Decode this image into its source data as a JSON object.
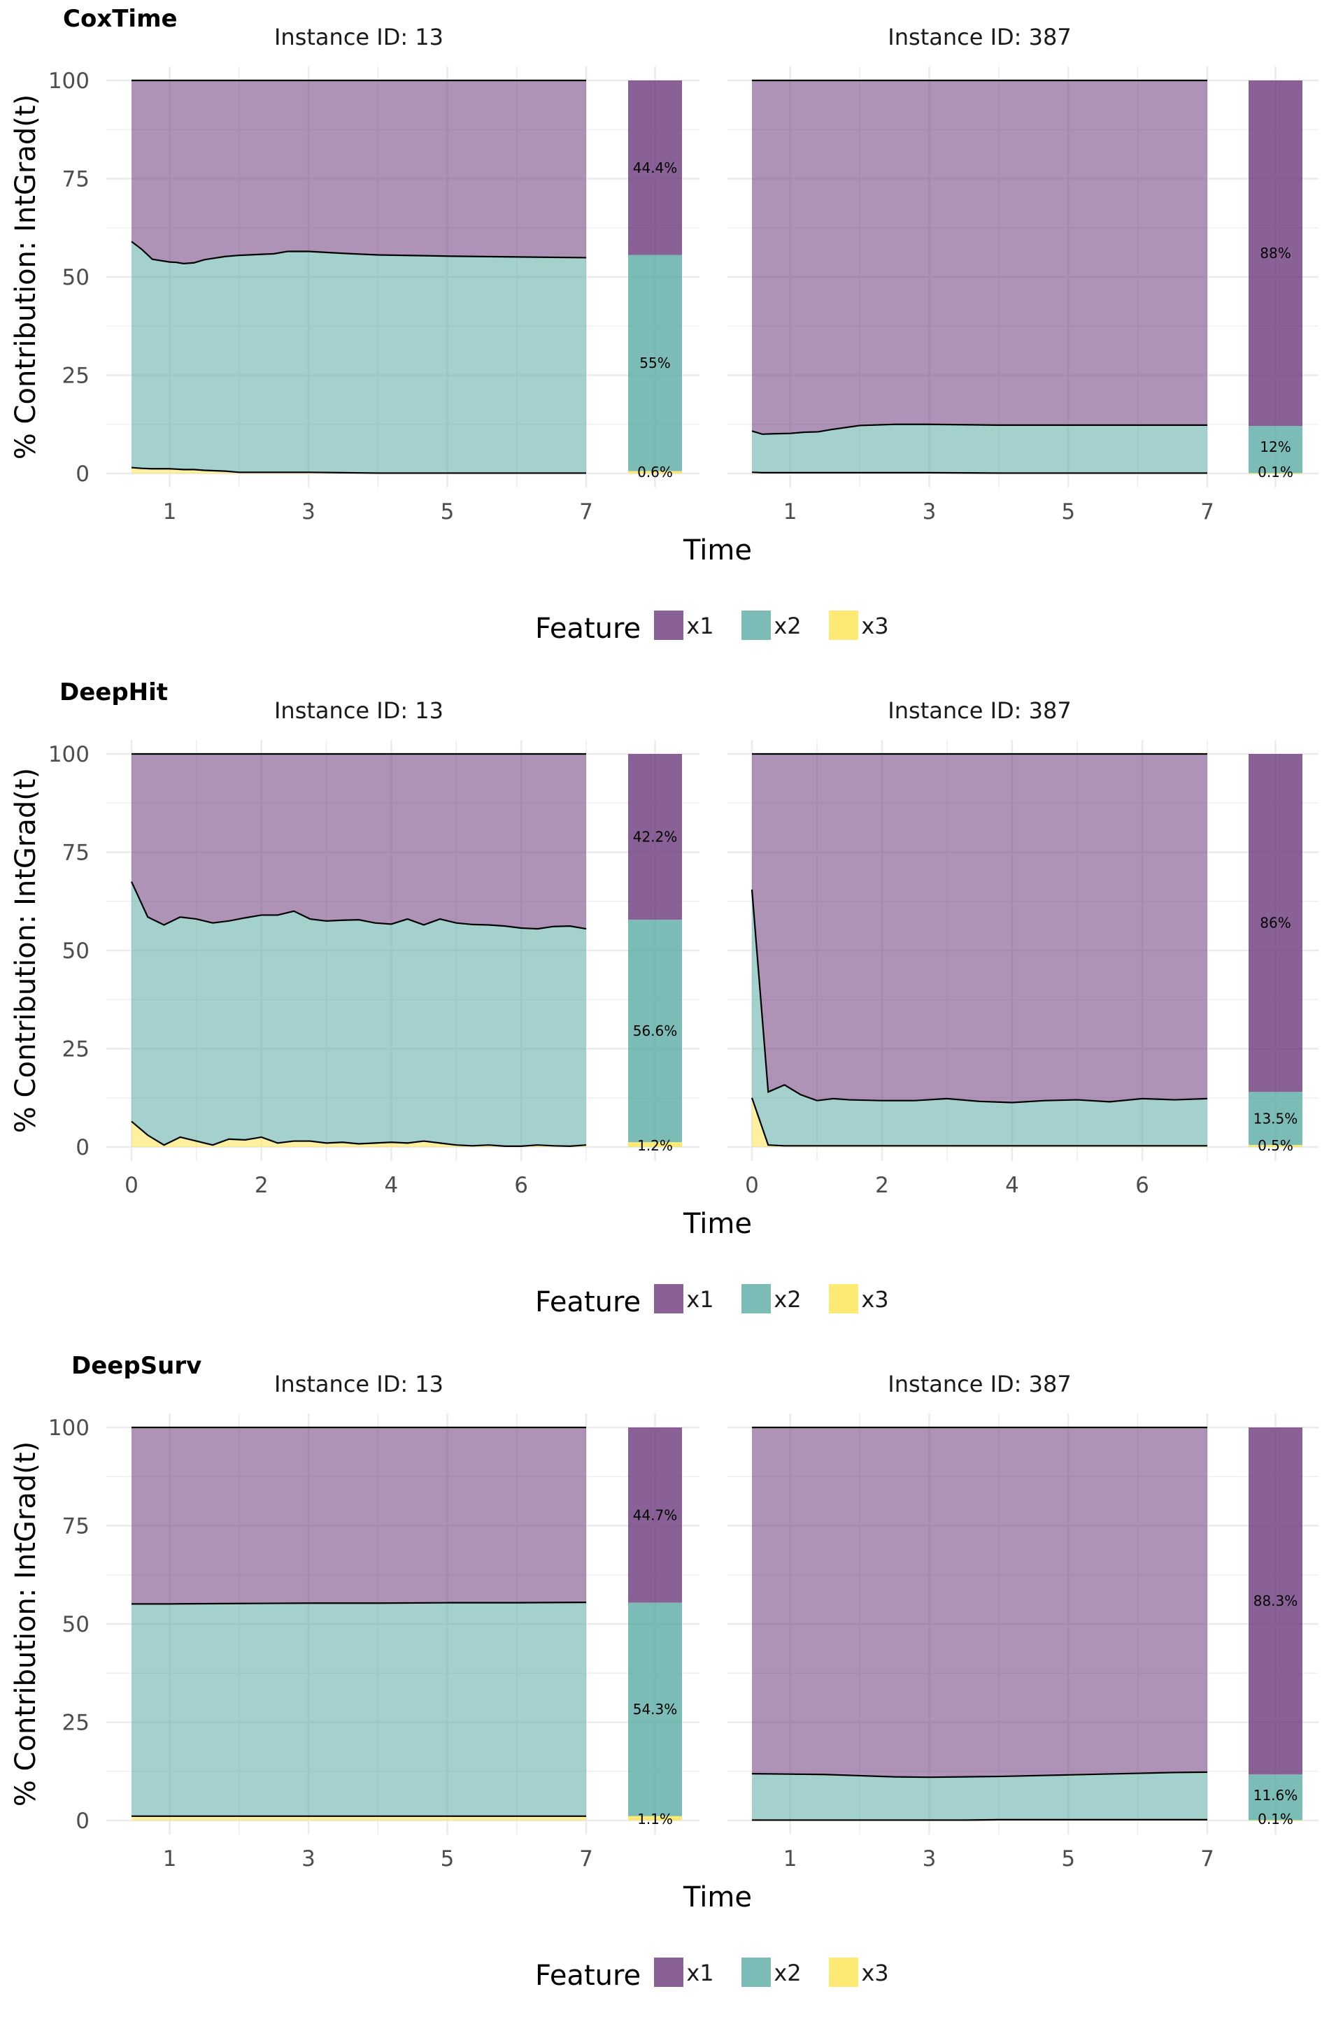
{
  "colors": {
    "x1": "#6c3a7c",
    "x2": "#5aaba4",
    "x3": "#fbe551",
    "grid": "#ebebeb",
    "line": "#000000"
  },
  "common": {
    "y_label": "% Contribution: IntGrad(t)",
    "x_label": "Time",
    "legend_title": "Feature",
    "y_ticks": [
      "100",
      "75",
      "50",
      "25",
      "0"
    ]
  },
  "chart_data": [
    {
      "type": "area",
      "title": "CoxTime",
      "xlabel": "Time",
      "ylabel": "% Contribution: IntGrad(t)",
      "ylim": [
        0,
        100
      ],
      "xlim": [
        0.45,
        7
      ],
      "x_ticks": [
        1,
        3,
        5,
        7
      ],
      "legend": [
        "x1",
        "x2",
        "x3"
      ],
      "legend_placement": "bottom",
      "panels": [
        {
          "title": "Instance ID: 13",
          "x": [
            0.45,
            0.6,
            0.75,
            1.0,
            1.1,
            1.2,
            1.35,
            1.5,
            1.8,
            2.0,
            2.5,
            2.7,
            3.0,
            3.5,
            4.0,
            5.0,
            6.0,
            7.0
          ],
          "series": [
            {
              "name": "x3",
              "values": [
                1.5,
                1.3,
                1.2,
                1.2,
                1.1,
                1.0,
                1.0,
                0.8,
                0.6,
                0.3,
                0.3,
                0.3,
                0.3,
                0.2,
                0.1,
                0.1,
                0.1,
                0.1
              ]
            },
            {
              "name": "x2",
              "values": [
                57.5,
                55.7,
                53.3,
                52.6,
                52.6,
                52.4,
                52.6,
                53.6,
                54.6,
                55.2,
                55.6,
                56.2,
                56.2,
                55.8,
                55.5,
                55.2,
                55.0,
                54.8
              ]
            }
          ],
          "summary": [
            {
              "name": "x1",
              "value": 44.4,
              "label": "44.4%"
            },
            {
              "name": "x2",
              "value": 55.0,
              "label": "55%"
            },
            {
              "name": "x3",
              "value": 0.6,
              "label": "0.6%"
            }
          ]
        },
        {
          "title": "Instance ID: 387",
          "x": [
            0.45,
            0.6,
            0.75,
            1.0,
            1.2,
            1.4,
            1.6,
            1.8,
            2.0,
            2.5,
            3.0,
            4.0,
            5.0,
            6.0,
            7.0
          ],
          "series": [
            {
              "name": "x3",
              "values": [
                0.3,
                0.2,
                0.2,
                0.2,
                0.2,
                0.2,
                0.2,
                0.2,
                0.2,
                0.2,
                0.2,
                0.1,
                0.1,
                0.1,
                0.1
              ]
            },
            {
              "name": "x2",
              "values": [
                10.5,
                9.8,
                9.9,
                10.0,
                10.3,
                10.4,
                11.0,
                11.5,
                12.0,
                12.3,
                12.3,
                12.2,
                12.2,
                12.2,
                12.2
              ]
            }
          ],
          "summary": [
            {
              "name": "x1",
              "value": 88,
              "label": "88%"
            },
            {
              "name": "x2",
              "value": 12,
              "label": "12%"
            },
            {
              "name": "x3",
              "value": 0.1,
              "label": "0.1%"
            }
          ]
        }
      ]
    },
    {
      "type": "area",
      "title": "DeepHit",
      "xlabel": "Time",
      "ylabel": "% Contribution: IntGrad(t)",
      "ylim": [
        0,
        100
      ],
      "xlim": [
        0,
        7
      ],
      "x_ticks": [
        0,
        2,
        4,
        6
      ],
      "legend": [
        "x1",
        "x2",
        "x3"
      ],
      "legend_placement": "bottom",
      "panels": [
        {
          "title": "Instance ID: 13",
          "x": [
            0,
            0.25,
            0.5,
            0.75,
            1.0,
            1.25,
            1.5,
            1.75,
            2.0,
            2.25,
            2.5,
            2.75,
            3.0,
            3.25,
            3.5,
            3.75,
            4.0,
            4.25,
            4.5,
            4.75,
            5.0,
            5.25,
            5.5,
            5.75,
            6.0,
            6.25,
            6.5,
            6.75,
            7.0
          ],
          "series": [
            {
              "name": "x3",
              "values": [
                6.5,
                3.0,
                0.5,
                2.5,
                1.5,
                0.5,
                2.0,
                1.8,
                2.5,
                1.0,
                1.5,
                1.5,
                1.0,
                1.2,
                0.8,
                1.0,
                1.2,
                1.0,
                1.5,
                1.0,
                0.5,
                0.3,
                0.5,
                0.2,
                0.2,
                0.5,
                0.3,
                0.2,
                0.5
              ]
            },
            {
              "name": "x2",
              "values": [
                61.0,
                55.5,
                56.0,
                56.0,
                56.5,
                56.5,
                55.5,
                56.5,
                56.5,
                58.0,
                58.5,
                56.5,
                56.5,
                56.5,
                57.0,
                56.0,
                55.5,
                57.0,
                55.0,
                57.0,
                56.5,
                56.3,
                56.0,
                56.0,
                55.5,
                55.0,
                55.8,
                56.0,
                55.0
              ]
            }
          ],
          "summary": [
            {
              "name": "x1",
              "value": 42.2,
              "label": "42.2%"
            },
            {
              "name": "x2",
              "value": 56.6,
              "label": "56.6%"
            },
            {
              "name": "x3",
              "value": 1.2,
              "label": "1.2%"
            }
          ]
        },
        {
          "title": "Instance ID: 387",
          "x": [
            0,
            0.25,
            0.5,
            0.75,
            1.0,
            1.25,
            1.5,
            2.0,
            2.5,
            3.0,
            3.5,
            4.0,
            4.5,
            5.0,
            5.5,
            6.0,
            6.5,
            7.0
          ],
          "series": [
            {
              "name": "x3",
              "values": [
                12.5,
                0.5,
                0.3,
                0.3,
                0.3,
                0.3,
                0.3,
                0.3,
                0.3,
                0.3,
                0.3,
                0.3,
                0.3,
                0.3,
                0.3,
                0.3,
                0.3,
                0.3
              ]
            },
            {
              "name": "x2",
              "values": [
                53.0,
                13.5,
                15.5,
                13.0,
                11.5,
                12.0,
                11.7,
                11.5,
                11.5,
                12.0,
                11.3,
                11.0,
                11.5,
                11.7,
                11.2,
                12.0,
                11.7,
                12.0
              ]
            }
          ],
          "summary": [
            {
              "name": "x1",
              "value": 86,
              "label": "86%"
            },
            {
              "name": "x2",
              "value": 13.5,
              "label": "13.5%"
            },
            {
              "name": "x3",
              "value": 0.5,
              "label": "0.5%"
            }
          ]
        }
      ]
    },
    {
      "type": "area",
      "title": "DeepSurv",
      "xlabel": "Time",
      "ylabel": "% Contribution: IntGrad(t)",
      "ylim": [
        0,
        100
      ],
      "xlim": [
        0.45,
        7
      ],
      "x_ticks": [
        1,
        3,
        5,
        7
      ],
      "legend": [
        "x1",
        "x2",
        "x3"
      ],
      "legend_placement": "bottom",
      "panels": [
        {
          "title": "Instance ID: 13",
          "x": [
            0.45,
            1.0,
            2.0,
            3.0,
            4.0,
            5.0,
            6.0,
            7.0
          ],
          "series": [
            {
              "name": "x3",
              "values": [
                1.1,
                1.1,
                1.1,
                1.1,
                1.1,
                1.1,
                1.1,
                1.1
              ]
            },
            {
              "name": "x2",
              "values": [
                54.0,
                54.0,
                54.1,
                54.2,
                54.2,
                54.3,
                54.3,
                54.4
              ]
            }
          ],
          "summary": [
            {
              "name": "x1",
              "value": 44.7,
              "label": "44.7%"
            },
            {
              "name": "x2",
              "value": 54.3,
              "label": "54.3%"
            },
            {
              "name": "x3",
              "value": 1.1,
              "label": "1.1%"
            }
          ]
        },
        {
          "title": "Instance ID: 387",
          "x": [
            0.45,
            1.0,
            1.5,
            2.0,
            2.5,
            3.0,
            3.5,
            4.0,
            4.5,
            5.0,
            5.5,
            6.0,
            6.5,
            7.0
          ],
          "series": [
            {
              "name": "x3",
              "values": [
                0.1,
                0.1,
                0.1,
                0.1,
                0.1,
                0.1,
                0.1,
                0.2,
                0.2,
                0.2,
                0.2,
                0.2,
                0.2,
                0.2
              ]
            },
            {
              "name": "x2",
              "values": [
                11.8,
                11.7,
                11.6,
                11.3,
                11.0,
                10.9,
                11.0,
                11.0,
                11.2,
                11.4,
                11.6,
                11.8,
                12.0,
                12.1
              ]
            }
          ],
          "summary": [
            {
              "name": "x1",
              "value": 88.3,
              "label": "88.3%"
            },
            {
              "name": "x2",
              "value": 11.6,
              "label": "11.6%"
            },
            {
              "name": "x3",
              "value": 0.1,
              "label": "0.1%"
            }
          ]
        }
      ]
    }
  ]
}
